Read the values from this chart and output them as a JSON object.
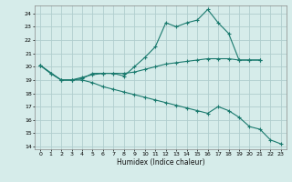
{
  "background_color": "#d6ecea",
  "grid_color": "#b0cece",
  "line_color": "#1a7a6e",
  "xlabel": "Humidex (Indice chaleur)",
  "xlim": [
    -0.5,
    23.5
  ],
  "ylim": [
    13.8,
    24.6
  ],
  "yticks": [
    14,
    15,
    16,
    17,
    18,
    19,
    20,
    21,
    22,
    23,
    24
  ],
  "xticks": [
    0,
    1,
    2,
    3,
    4,
    5,
    6,
    7,
    8,
    9,
    10,
    11,
    12,
    13,
    14,
    15,
    16,
    17,
    18,
    19,
    20,
    21,
    22,
    23
  ],
  "line1_x": [
    0,
    1,
    2,
    3,
    4,
    5,
    6,
    7,
    8,
    9,
    10,
    11,
    12,
    13,
    14,
    15,
    16,
    17,
    18,
    19,
    20,
    21
  ],
  "line1_y": [
    20.1,
    19.5,
    19.0,
    19.0,
    19.1,
    19.5,
    19.5,
    19.5,
    19.3,
    20.0,
    20.7,
    21.5,
    23.3,
    23.0,
    23.3,
    23.5,
    24.3,
    23.3,
    22.5,
    20.5,
    20.5,
    20.5
  ],
  "line2_x": [
    0,
    1,
    2,
    3,
    4,
    5,
    6,
    7,
    8,
    9,
    10,
    11,
    12,
    13,
    14,
    15,
    16,
    17,
    18,
    19,
    20,
    21
  ],
  "line2_y": [
    20.1,
    19.5,
    19.0,
    19.0,
    19.2,
    19.4,
    19.5,
    19.5,
    19.5,
    19.6,
    19.8,
    20.0,
    20.2,
    20.3,
    20.4,
    20.5,
    20.6,
    20.6,
    20.6,
    20.5,
    20.5,
    20.5
  ],
  "line3_x": [
    0,
    2,
    3,
    4,
    5,
    6,
    7,
    8,
    9,
    10,
    11,
    12,
    13,
    14,
    15,
    16,
    17,
    18,
    19,
    20,
    21,
    22,
    23
  ],
  "line3_y": [
    20.1,
    19.0,
    19.0,
    19.0,
    18.8,
    18.5,
    18.3,
    18.1,
    17.9,
    17.7,
    17.5,
    17.3,
    17.1,
    16.9,
    16.7,
    16.5,
    17.0,
    16.7,
    16.2,
    15.5,
    15.3,
    14.5,
    14.2
  ]
}
